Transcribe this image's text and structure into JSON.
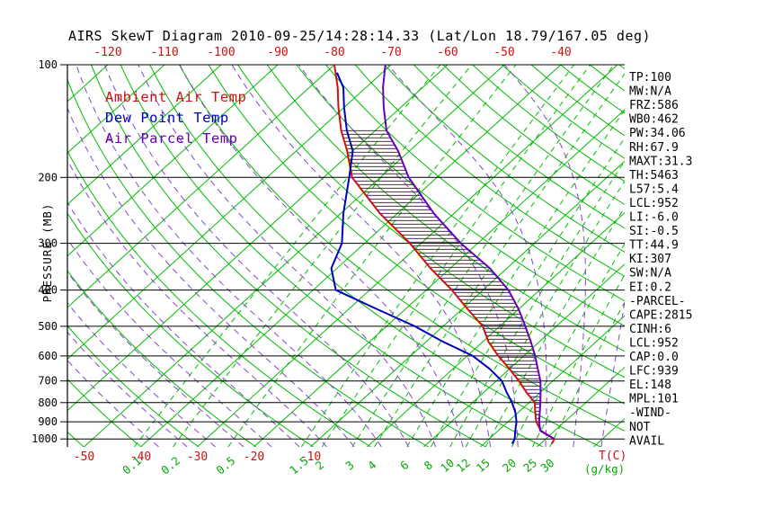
{
  "title": "AIRS SkewT Diagram 2010-09-25/14:28:14.33 (Lat/Lon 18.79/167.05 deg)",
  "legend": {
    "ambient": "Ambient Air Temp",
    "dew_point": "Dew Point Temp",
    "parcel": "Air Parcel Temp"
  },
  "axes": {
    "pressure_label": "PRESSURE (MB)",
    "pressure_ticks": [
      100,
      200,
      300,
      400,
      500,
      600,
      700,
      800,
      900,
      1000
    ],
    "top_temp_ticks": [
      -120,
      -110,
      -100,
      -90,
      -80,
      -70,
      -60,
      -50,
      -40
    ],
    "bottom_temp_ticks": [
      -50,
      -40,
      -30,
      -20,
      -10
    ],
    "temp_unit_label": "T(C)",
    "mixing_unit_label": "(g/kg)"
  },
  "stats": [
    "TP:100",
    "MW:N/A",
    "FRZ:586",
    "WB0:462",
    "PW:34.06",
    "RH:67.9",
    "MAXT:31.3",
    "TH:5463",
    "L57:5.4",
    "LCL:952",
    "LI:-6.0",
    "SI:-0.5",
    "TT:44.9",
    "KI:307",
    "SW:N/A",
    "EI:0.2",
    "-PARCEL-",
    "CAPE:2815",
    "CINH:6",
    "LCL:952",
    "CAP:0.0",
    "LFC:939",
    "EL:148",
    "MPL:101",
    "-WIND-",
    "NOT",
    "AVAIL"
  ],
  "colors": {
    "isobar": "#000000",
    "isotherm": "#00bb00",
    "dry_adiabat": "#00bb00",
    "mixing_ratio": "#00bb00",
    "moist_adiabat": "#8844cc",
    "ambient": "#cc1111",
    "dew_point": "#0000bb",
    "parcel": "#6600bb",
    "hatch": "#330099",
    "axis_red": "#cc1111",
    "axis_green": "#00aa00"
  },
  "chart_data": {
    "type": "line",
    "title": "AIRS SkewT Diagram 2010-09-25/14:28:14.33 (Lat/Lon 18.79/167.05 deg)",
    "x_axis": {
      "label": "T(C)",
      "skewed": true,
      "top_ticks": [
        -120,
        -110,
        -100,
        -90,
        -80,
        -70,
        -60,
        -50,
        -40
      ],
      "bottom_ticks": [
        -50,
        -40,
        -30,
        -20,
        -10
      ]
    },
    "y_axis": {
      "label": "PRESSURE (MB)",
      "scale": "log",
      "range": [
        100,
        1050
      ],
      "ticks": [
        100,
        200,
        300,
        400,
        500,
        600,
        700,
        800,
        900,
        1000
      ]
    },
    "mixing_ratio_lines_g_per_kg": [
      0.1,
      0.2,
      0.5,
      1.5,
      2,
      3,
      4,
      6,
      8,
      10,
      12,
      15,
      20,
      25,
      30
    ],
    "background": {
      "isotherm_C": {
        "min": -160,
        "max": 40,
        "step": 10
      },
      "dry_adiabat_theta_K": {
        "min": 220,
        "max": 470,
        "step": 10
      },
      "moist_adiabat_start_C": {
        "min": -40,
        "max": 40,
        "step": 5
      }
    },
    "cape_hatch": {
      "from_mb": 940,
      "to_mb": 150
    },
    "series": [
      {
        "name": "Ambient Air Temp",
        "color": "#cc1111",
        "points_p_T": [
          [
            1030,
            32
          ],
          [
            1000,
            31.5
          ],
          [
            950,
            27.5
          ],
          [
            900,
            25
          ],
          [
            850,
            23
          ],
          [
            800,
            21
          ],
          [
            750,
            17.5
          ],
          [
            700,
            14
          ],
          [
            650,
            10
          ],
          [
            600,
            5.5
          ],
          [
            550,
            1
          ],
          [
            500,
            -3
          ],
          [
            450,
            -9
          ],
          [
            400,
            -15.5
          ],
          [
            350,
            -23.5
          ],
          [
            300,
            -32
          ],
          [
            250,
            -43
          ],
          [
            200,
            -55
          ],
          [
            170,
            -61
          ],
          [
            150,
            -66
          ],
          [
            130,
            -71
          ],
          [
            115,
            -75
          ],
          [
            100,
            -80
          ]
        ]
      },
      {
        "name": "Dew Point Temp",
        "color": "#0000bb",
        "points_p_T": [
          [
            1030,
            25
          ],
          [
            1000,
            24.5
          ],
          [
            950,
            23
          ],
          [
            900,
            21.5
          ],
          [
            850,
            19.5
          ],
          [
            800,
            17
          ],
          [
            750,
            14
          ],
          [
            700,
            11
          ],
          [
            650,
            6.5
          ],
          [
            600,
            1
          ],
          [
            550,
            -7
          ],
          [
            500,
            -15
          ],
          [
            450,
            -25
          ],
          [
            400,
            -36
          ],
          [
            350,
            -41
          ],
          [
            300,
            -44
          ],
          [
            250,
            -49.5
          ],
          [
            200,
            -55.5
          ],
          [
            170,
            -60
          ],
          [
            150,
            -65
          ],
          [
            130,
            -70
          ],
          [
            115,
            -74
          ],
          [
            105,
            -78
          ]
        ]
      },
      {
        "name": "Air Parcel Temp",
        "color": "#6600bb",
        "points_p_T": [
          [
            1000,
            31.5
          ],
          [
            952,
            27.5
          ],
          [
            900,
            25.5
          ],
          [
            850,
            23.8
          ],
          [
            800,
            22
          ],
          [
            750,
            20
          ],
          [
            700,
            17.8
          ],
          [
            650,
            15
          ],
          [
            600,
            12
          ],
          [
            550,
            8.5
          ],
          [
            500,
            4.5
          ],
          [
            450,
            0
          ],
          [
            400,
            -5.5
          ],
          [
            350,
            -13
          ],
          [
            300,
            -23
          ],
          [
            250,
            -33.5
          ],
          [
            200,
            -45
          ],
          [
            170,
            -52
          ],
          [
            150,
            -58
          ],
          [
            130,
            -63
          ],
          [
            115,
            -67
          ],
          [
            100,
            -71
          ]
        ]
      }
    ]
  }
}
